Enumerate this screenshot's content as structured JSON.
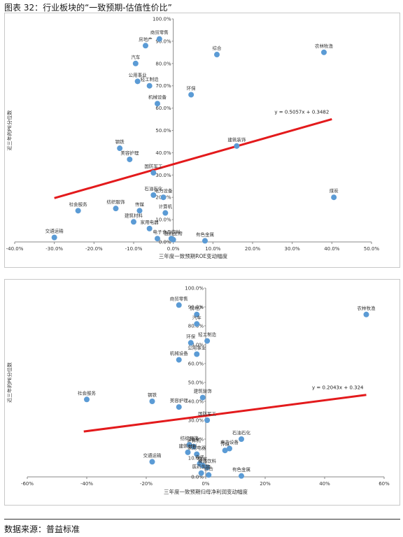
{
  "page": {
    "title": "图表 32：行业板块的“一致预期-估值性价比”",
    "source": "数据来源：普益标准"
  },
  "chart_data": [
    {
      "type": "scatter",
      "xlabel": "三年度一致预期ROE变动幅度",
      "ylabel": "近三年的PE分位数",
      "xlim": [
        -0.4,
        0.5
      ],
      "ylim": [
        0,
        1.0
      ],
      "x_ticks": [
        "-40.0%",
        "-30.0%",
        "-20.0%",
        "-10.0%",
        "0.0%",
        "10.0%",
        "20.0%",
        "30.0%",
        "40.0%",
        "50.0%"
      ],
      "y_ticks": [
        "0.0%",
        "10.0%",
        "20.0%",
        "30.0%",
        "40.0%",
        "50.0%",
        "60.0%",
        "70.0%",
        "80.0%",
        "90.0%",
        "100.0%"
      ],
      "trendline": {
        "slope": 0.5057,
        "intercept": 0.3482,
        "x_range": [
          -0.3,
          0.4
        ],
        "label": "y = 0.5057x + 0.3482"
      },
      "points": [
        {
          "label": "商贸零售",
          "x": -0.035,
          "y": 0.91
        },
        {
          "label": "房地产",
          "x": -0.07,
          "y": 0.88
        },
        {
          "label": "汽车",
          "x": -0.095,
          "y": 0.8
        },
        {
          "label": "公用事业",
          "x": -0.09,
          "y": 0.72
        },
        {
          "label": "轻工制造",
          "x": -0.06,
          "y": 0.7
        },
        {
          "label": "机械设备",
          "x": -0.04,
          "y": 0.62
        },
        {
          "label": "综合",
          "x": 0.11,
          "y": 0.84
        },
        {
          "label": "农林牧渔",
          "x": 0.38,
          "y": 0.85
        },
        {
          "label": "环保",
          "x": 0.045,
          "y": 0.66
        },
        {
          "label": "建筑装饰",
          "x": 0.16,
          "y": 0.43
        },
        {
          "label": "钢铁",
          "x": -0.135,
          "y": 0.42
        },
        {
          "label": "美容护理",
          "x": -0.11,
          "y": 0.37
        },
        {
          "label": "国防军工",
          "x": -0.05,
          "y": 0.31
        },
        {
          "label": "石油石化",
          "x": -0.05,
          "y": 0.21
        },
        {
          "label": "电力设备",
          "x": -0.025,
          "y": 0.2
        },
        {
          "label": "煤炭",
          "x": 0.405,
          "y": 0.2
        },
        {
          "label": "社会服务",
          "x": -0.24,
          "y": 0.14
        },
        {
          "label": "纺织服饰",
          "x": -0.145,
          "y": 0.15
        },
        {
          "label": "传媒",
          "x": -0.085,
          "y": 0.14
        },
        {
          "label": "计算机",
          "x": -0.02,
          "y": 0.13
        },
        {
          "label": "建筑材料",
          "x": -0.1,
          "y": 0.09
        },
        {
          "label": "家用电器",
          "x": -0.06,
          "y": 0.06
        },
        {
          "label": "交通运输",
          "x": -0.3,
          "y": 0.02
        },
        {
          "label": "电子",
          "x": -0.04,
          "y": 0.015
        },
        {
          "label": "食品饮料",
          "x": -0.005,
          "y": 0.015
        },
        {
          "label": "医药生物",
          "x": 0.0,
          "y": 0.01
        },
        {
          "label": "有色金属",
          "x": 0.08,
          "y": 0.005
        }
      ]
    },
    {
      "type": "scatter",
      "xlabel": "三年度一致预期归母净利润变动幅度",
      "ylabel": "近三年的PE分位数",
      "xlim": [
        -0.6,
        0.6
      ],
      "ylim": [
        0,
        1.0
      ],
      "x_ticks": [
        "-60%",
        "-40%",
        "-20%",
        "0%",
        "20%",
        "40%",
        "60%"
      ],
      "y_ticks": [
        "0.0%",
        "10.0%",
        "20.0%",
        "30.0%",
        "40.0%",
        "50.0%",
        "60.0%",
        "70.0%",
        "80.0%",
        "90.0%",
        "100.0%"
      ],
      "trendline": {
        "slope": 0.2043,
        "intercept": 0.324,
        "x_range": [
          -0.41,
          0.54
        ],
        "label": "y = 0.2043x + 0.324"
      },
      "points": [
        {
          "label": "商贸零售",
          "x": -0.09,
          "y": 0.91
        },
        {
          "label": "房地产",
          "x": -0.03,
          "y": 0.86
        },
        {
          "label": "汽车",
          "x": -0.03,
          "y": 0.81
        },
        {
          "label": "轻工制造",
          "x": 0.005,
          "y": 0.72
        },
        {
          "label": "环保",
          "x": -0.05,
          "y": 0.71
        },
        {
          "label": "公用事业",
          "x": -0.03,
          "y": 0.65
        },
        {
          "label": "机械设备",
          "x": -0.09,
          "y": 0.62
        },
        {
          "label": "农林牧渔",
          "x": 0.54,
          "y": 0.86
        },
        {
          "label": "社会服务",
          "x": -0.4,
          "y": 0.41
        },
        {
          "label": "钢铁",
          "x": -0.18,
          "y": 0.4
        },
        {
          "label": "美容护理",
          "x": -0.09,
          "y": 0.37
        },
        {
          "label": "建筑装饰",
          "x": -0.01,
          "y": 0.42
        },
        {
          "label": "国防军工",
          "x": 0.005,
          "y": 0.3
        },
        {
          "label": "石油石化",
          "x": 0.12,
          "y": 0.2
        },
        {
          "label": "电力设备",
          "x": 0.08,
          "y": 0.15
        },
        {
          "label": "传媒",
          "x": 0.065,
          "y": 0.14
        },
        {
          "label": "纺织服饰",
          "x": -0.055,
          "y": 0.17
        },
        {
          "label": "计算机",
          "x": -0.04,
          "y": 0.16
        },
        {
          "label": "建筑材料",
          "x": -0.06,
          "y": 0.13
        },
        {
          "label": "家用电器",
          "x": -0.03,
          "y": 0.12
        },
        {
          "label": "电子",
          "x": -0.02,
          "y": 0.07
        },
        {
          "label": "煤炭",
          "x": -0.01,
          "y": 0.06
        },
        {
          "label": "食品饮料",
          "x": 0.005,
          "y": 0.05
        },
        {
          "label": "交通运输",
          "x": -0.18,
          "y": 0.08
        },
        {
          "label": "医药生物",
          "x": -0.015,
          "y": 0.02
        },
        {
          "label": "有色金属",
          "x": 0.12,
          "y": 0.005
        },
        {
          "label": "综合",
          "x": 0.01,
          "y": 0.01
        }
      ]
    }
  ],
  "colors": {
    "point": "#5b9bd5",
    "trend": "#e31a1c",
    "grid": "#d9d9d9",
    "axis": "#888888"
  }
}
